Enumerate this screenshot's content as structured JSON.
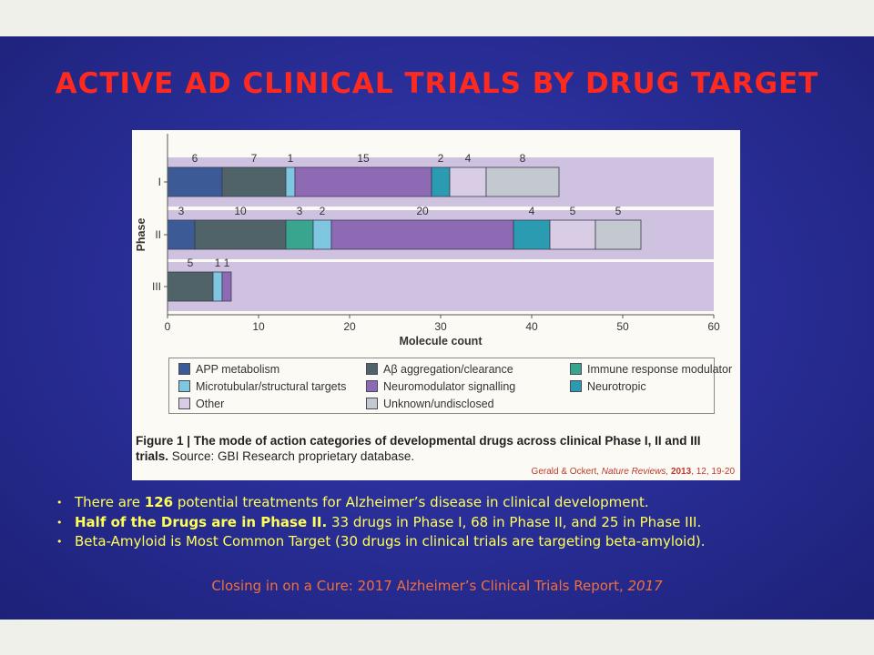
{
  "slide": {
    "title": "ACTIVE AD CLINICAL TRIALS BY DRUG TARGET",
    "bullets": [
      {
        "pre": "There are ",
        "bold": "126",
        "post": " potential treatments for Alzheimer’s disease in clinical development."
      },
      {
        "pre": "",
        "bold": "Half of the Drugs are in Phase II.",
        "post": " 33 drugs in Phase I, 68 in Phase II, and 25 in Phase III."
      },
      {
        "pre": "Beta-Amyloid is Most Common Target (30 drugs in clinical trials are targeting beta-amyloid).",
        "bold": "",
        "post": ""
      }
    ],
    "source": {
      "text": "Closing in on a Cure: 2017 Alzheimer’s Clinical Trials Report, ",
      "year": "2017"
    }
  },
  "figure": {
    "caption_bold": "Figure 1 | The mode of action categories of developmental drugs across clinical Phase I, II and III trials.",
    "caption_rest": " Source: GBI Research proprietary database.",
    "citation": {
      "authors": "Gerald & Ockert, ",
      "journal": "Nature Reviews, ",
      "year": "2013",
      "rest": ", 12, 19-20"
    }
  },
  "chart_data": {
    "type": "bar",
    "orientation": "horizontal",
    "stacked": true,
    "xlabel": "Molecule count",
    "ylabel": "Phase",
    "xlim": [
      0,
      60
    ],
    "xticks": [
      0,
      10,
      20,
      30,
      40,
      50,
      60
    ],
    "categories": [
      "I",
      "II",
      "III"
    ],
    "series": [
      {
        "name": "APP metabolism",
        "color": "#3c5a96",
        "values": [
          6,
          3,
          0
        ]
      },
      {
        "name": "Aβ aggregation/clearance",
        "color": "#4f6368",
        "values": [
          7,
          10,
          5
        ]
      },
      {
        "name": "Immune response modulator",
        "color": "#3aa58e",
        "values": [
          0,
          3,
          0
        ]
      },
      {
        "name": "Microtubular/structural targets",
        "color": "#7fc6e0",
        "values": [
          1,
          2,
          1
        ]
      },
      {
        "name": "Neuromodulator signalling",
        "color": "#8e6ab5",
        "values": [
          15,
          20,
          1
        ]
      },
      {
        "name": "Neurotropic",
        "color": "#2a9bb0",
        "values": [
          2,
          4,
          0
        ]
      },
      {
        "name": "Other",
        "color": "#d9cde6",
        "values": [
          4,
          5,
          0
        ]
      },
      {
        "name": "Unknown/undisclosed",
        "color": "#c3c9ce",
        "values": [
          8,
          5,
          0
        ]
      }
    ],
    "legend_position": "bottom",
    "legend_order": [
      "APP metabolism",
      "Microtubular/structural targets",
      "Other",
      "Aβ aggregation/clearance",
      "Neuromodulator signalling",
      "Unknown/undisclosed",
      "Immune response modulator",
      "Neurotropic"
    ],
    "colors": {
      "band": "#cfc2e0",
      "bar_outline": "#3a3a50",
      "axis": "#555555"
    }
  }
}
